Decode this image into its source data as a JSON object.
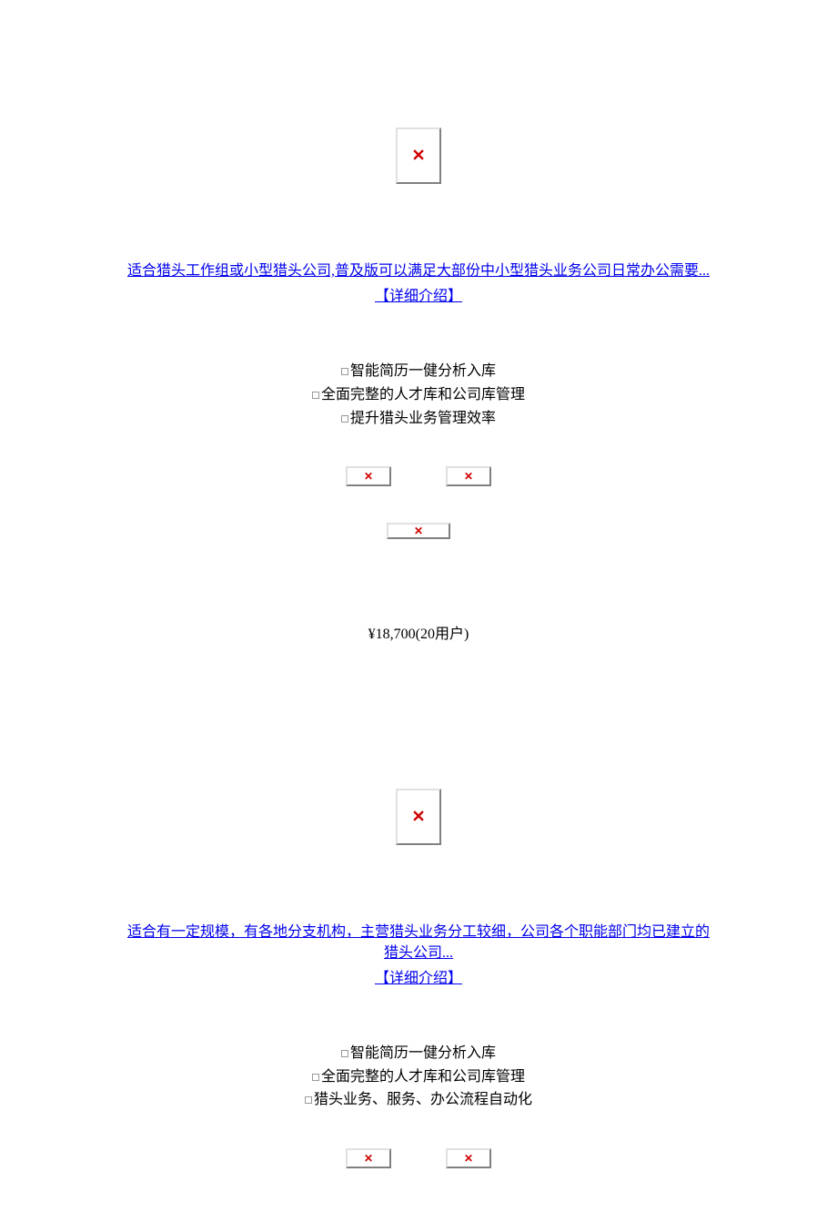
{
  "products": [
    {
      "description": "适合猎头工作组或小型猎头公司,普及版可以满足大部份中小型猎头业务公司日常办公需要...",
      "detail_link": "【详细介绍】",
      "features": [
        "智能简历一健分析入库",
        "全面完整的人才库和公司库管理",
        "提升猎头业务管理效率"
      ],
      "price": "¥18,700(20用户)"
    },
    {
      "description": "适合有一定规模，有各地分支机构，主营猎头业务分工较细，公司各个职能部门均已建立的猎头公司...",
      "detail_link": "【详细介绍】",
      "features": [
        "智能简历一健分析入库",
        "全面完整的人才库和公司库管理",
        "猎头业务、服务、办公流程自动化"
      ]
    }
  ],
  "colors": {
    "link": "#0000ee",
    "text": "#000000",
    "background": "#ffffff",
    "broken_icon": "#d00000",
    "border_light": "#e0e0e0",
    "border_dark": "#808080"
  }
}
